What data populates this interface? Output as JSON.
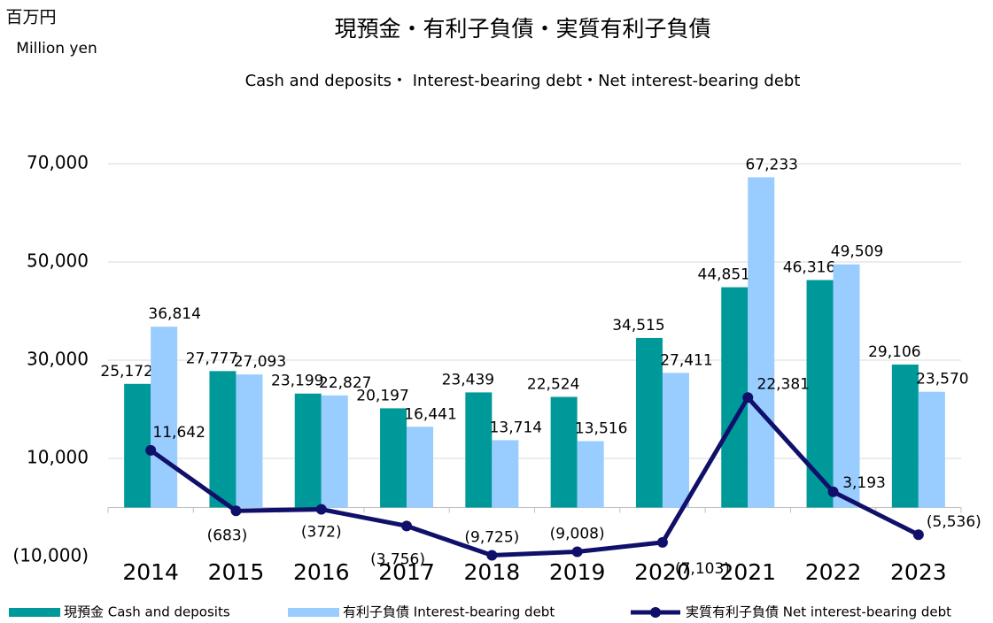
{
  "chart_data": {
    "type": "bar",
    "unit_ja": "百万円",
    "unit_en": "Million yen",
    "title": "現預金・有利子負債・実質有利子負債",
    "subtitle": "Cash and deposits・ Interest-bearing debt・Net interest-bearing debt",
    "categories": [
      "2014",
      "2015",
      "2016",
      "2017",
      "2018",
      "2019",
      "2020",
      "2021",
      "2022",
      "2023"
    ],
    "series": [
      {
        "name": "現預金 Cash and deposits",
        "color": "#009999",
        "label_color": "#17766b",
        "values": [
          25172,
          27777,
          23199,
          20197,
          23439,
          22524,
          34515,
          44851,
          46316,
          29106
        ],
        "value_labels": [
          "25,172",
          "27,777",
          "23,199",
          "20,197",
          "23,439",
          "22,524",
          "34,515",
          "44,851",
          "46,316",
          "29,106"
        ]
      },
      {
        "name": "有利子負債 Interest-bearing debt",
        "color": "#99ccff",
        "label_color": "#4472c4",
        "values": [
          36814,
          27093,
          22827,
          16441,
          13714,
          13516,
          27411,
          67233,
          49509,
          23570
        ],
        "value_labels": [
          "36,814",
          "27,093",
          "22,827",
          "16,441",
          "13,714",
          "13,516",
          "27,411",
          "67,233",
          "49,509",
          "23,570"
        ]
      },
      {
        "name": "実質有利子負債 Net interest-bearing debt",
        "color": "#10106a",
        "label_color": "#333333",
        "type": "line",
        "values": [
          11642,
          -683,
          -372,
          -3756,
          -9725,
          -9008,
          -7103,
          22381,
          3193,
          -5536
        ],
        "value_labels": [
          "11,642",
          "(683)",
          "(372)",
          "(3,756)",
          "(9,725)",
          "(9,008)",
          "(7,103)",
          "22,381",
          "3,193",
          "(5,536)"
        ]
      }
    ],
    "ylim": [
      -10000,
      70000
    ],
    "yticks": [
      {
        "value": -10000,
        "label": "(10,000)"
      },
      {
        "value": 10000,
        "label": "10,000"
      },
      {
        "value": 30000,
        "label": "30,000"
      },
      {
        "value": 50000,
        "label": "50,000"
      },
      {
        "value": 70000,
        "label": "70,000"
      }
    ],
    "grid": true,
    "legend": "bottom"
  }
}
